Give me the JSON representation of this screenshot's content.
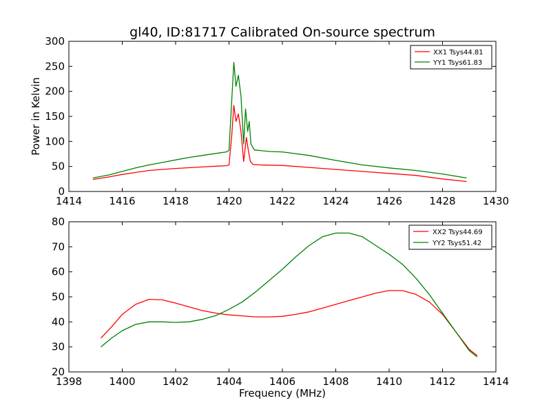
{
  "chart_data": [
    {
      "type": "line",
      "title": "gl40, ID:81717 Calibrated On-source spectrum",
      "xlabel": "",
      "ylabel": "Power in Kelvin",
      "xlim": [
        1414,
        1430
      ],
      "ylim": [
        0,
        300
      ],
      "xticks": [
        "1414",
        "1416",
        "1418",
        "1420",
        "1422",
        "1424",
        "1426",
        "1428",
        "1430"
      ],
      "yticks": [
        "0",
        "50",
        "100",
        "150",
        "200",
        "250",
        "300"
      ],
      "legend_position": "top-right",
      "grid": false,
      "series": [
        {
          "name": "XX1 Tsys44.81",
          "color": "#ff0000",
          "points": [
            [
              1414.9,
              24
            ],
            [
              1415.5,
              29
            ],
            [
              1416.0,
              34
            ],
            [
              1416.5,
              38
            ],
            [
              1417.0,
              42
            ],
            [
              1417.5,
              44
            ],
            [
              1418.0,
              46
            ],
            [
              1418.5,
              47.5
            ],
            [
              1419.0,
              49
            ],
            [
              1419.5,
              50.5
            ],
            [
              1419.9,
              51.5
            ],
            [
              1420.0,
              53
            ],
            [
              1420.1,
              110
            ],
            [
              1420.18,
              172
            ],
            [
              1420.26,
              140
            ],
            [
              1420.35,
              155
            ],
            [
              1420.45,
              120
            ],
            [
              1420.55,
              60
            ],
            [
              1420.65,
              108
            ],
            [
              1420.73,
              80
            ],
            [
              1420.8,
              60
            ],
            [
              1420.9,
              54
            ],
            [
              1421.2,
              53
            ],
            [
              1422.0,
              52
            ],
            [
              1423.0,
              48
            ],
            [
              1424.0,
              44
            ],
            [
              1425.0,
              40
            ],
            [
              1426.0,
              36
            ],
            [
              1427.0,
              32
            ],
            [
              1428.0,
              25
            ],
            [
              1428.9,
              20
            ]
          ]
        },
        {
          "name": "YY1 Tsys61.83",
          "color": "#008000",
          "points": [
            [
              1414.9,
              27
            ],
            [
              1415.5,
              33
            ],
            [
              1416.0,
              40
            ],
            [
              1416.5,
              47
            ],
            [
              1417.0,
              53
            ],
            [
              1417.5,
              58
            ],
            [
              1418.0,
              63
            ],
            [
              1418.5,
              68
            ],
            [
              1419.0,
              72
            ],
            [
              1419.5,
              76
            ],
            [
              1419.9,
              79
            ],
            [
              1420.0,
              82
            ],
            [
              1420.1,
              180
            ],
            [
              1420.18,
              258
            ],
            [
              1420.26,
              210
            ],
            [
              1420.35,
              232
            ],
            [
              1420.45,
              190
            ],
            [
              1420.55,
              95
            ],
            [
              1420.62,
              165
            ],
            [
              1420.7,
              120
            ],
            [
              1420.76,
              140
            ],
            [
              1420.82,
              95
            ],
            [
              1420.95,
              83
            ],
            [
              1421.5,
              80
            ],
            [
              1422.0,
              79
            ],
            [
              1423.0,
              72
            ],
            [
              1424.0,
              62
            ],
            [
              1425.0,
              53
            ],
            [
              1426.0,
              47
            ],
            [
              1427.0,
              42
            ],
            [
              1428.0,
              35
            ],
            [
              1428.9,
              27
            ]
          ]
        }
      ]
    },
    {
      "type": "line",
      "title": "",
      "xlabel": "Frequency (MHz)",
      "ylabel": "",
      "xlim": [
        1398,
        1414
      ],
      "ylim": [
        20,
        80
      ],
      "xticks": [
        "1398",
        "1400",
        "1402",
        "1404",
        "1406",
        "1408",
        "1410",
        "1412",
        "1414"
      ],
      "yticks": [
        "20",
        "30",
        "40",
        "50",
        "60",
        "70",
        "80"
      ],
      "legend_position": "top-right",
      "grid": false,
      "series": [
        {
          "name": "XX2 Tsys44.69",
          "color": "#ff0000",
          "points": [
            [
              1399.2,
              33.5
            ],
            [
              1399.6,
              38
            ],
            [
              1400.0,
              43
            ],
            [
              1400.5,
              47
            ],
            [
              1401.0,
              49
            ],
            [
              1401.5,
              48.8
            ],
            [
              1402.0,
              47.5
            ],
            [
              1402.5,
              46
            ],
            [
              1403.0,
              44.5
            ],
            [
              1403.5,
              43.5
            ],
            [
              1404.0,
              42.8
            ],
            [
              1404.5,
              42.4
            ],
            [
              1405.0,
              42
            ],
            [
              1405.5,
              42
            ],
            [
              1406.0,
              42.2
            ],
            [
              1406.5,
              43
            ],
            [
              1407.0,
              44
            ],
            [
              1407.5,
              45.5
            ],
            [
              1408.0,
              47
            ],
            [
              1408.5,
              48.5
            ],
            [
              1409.0,
              50
            ],
            [
              1409.5,
              51.5
            ],
            [
              1410.0,
              52.5
            ],
            [
              1410.5,
              52.5
            ],
            [
              1411.0,
              51
            ],
            [
              1411.5,
              48
            ],
            [
              1412.0,
              43
            ],
            [
              1412.5,
              36
            ],
            [
              1413.0,
              29
            ],
            [
              1413.3,
              26.5
            ]
          ]
        },
        {
          "name": "YY2 Tsys51.42",
          "color": "#008000",
          "points": [
            [
              1399.2,
              30
            ],
            [
              1399.6,
              33.5
            ],
            [
              1400.0,
              36.5
            ],
            [
              1400.5,
              39
            ],
            [
              1401.0,
              40
            ],
            [
              1401.5,
              40
            ],
            [
              1402.0,
              39.8
            ],
            [
              1402.5,
              40
            ],
            [
              1403.0,
              41
            ],
            [
              1403.5,
              42.5
            ],
            [
              1404.0,
              45
            ],
            [
              1404.5,
              48
            ],
            [
              1405.0,
              52
            ],
            [
              1405.5,
              56.5
            ],
            [
              1406.0,
              61
            ],
            [
              1406.5,
              66
            ],
            [
              1407.0,
              70.5
            ],
            [
              1407.5,
              74
            ],
            [
              1408.0,
              75.5
            ],
            [
              1408.5,
              75.5
            ],
            [
              1409.0,
              74
            ],
            [
              1409.5,
              70.5
            ],
            [
              1410.0,
              67
            ],
            [
              1410.5,
              63
            ],
            [
              1411.0,
              57.5
            ],
            [
              1411.5,
              51
            ],
            [
              1412.0,
              43.5
            ],
            [
              1412.5,
              36
            ],
            [
              1413.0,
              28.5
            ],
            [
              1413.3,
              26
            ]
          ]
        }
      ]
    }
  ]
}
